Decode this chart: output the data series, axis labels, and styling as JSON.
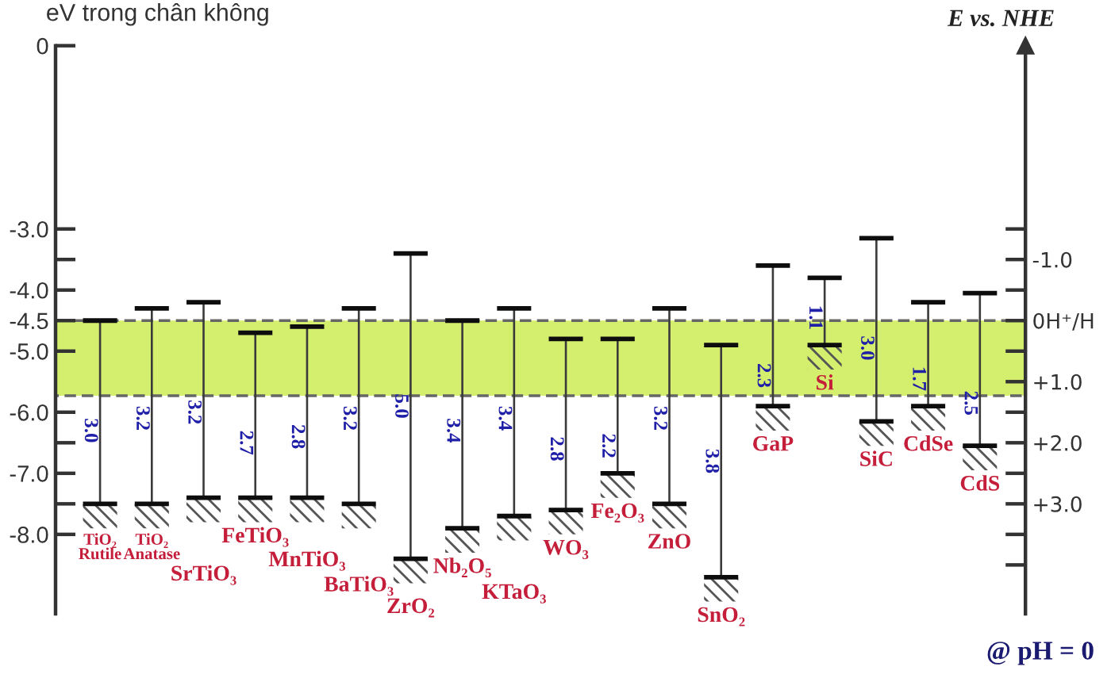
{
  "chart_data": {
    "type": "bar",
    "ylabel": "eV trong chân không",
    "y2label": "E vs. NHE",
    "categories": [
      "TiO₂\nRutile",
      "TiO₂\nAnatase",
      "SrTiO₃",
      "FeTiO₃",
      "MnTiO₃",
      "BaTiO₃",
      "ZrO₂",
      "Nb₂O₅",
      "KTaO₃",
      "WO₃",
      "Fe₂O₃",
      "ZnO",
      "SnO₂",
      "GaP",
      "Si",
      "SiC",
      "CdSe",
      "CdS"
    ],
    "values": [
      3.0,
      3.2,
      3.2,
      2.7,
      2.8,
      3.2,
      5.0,
      3.4,
      3.4,
      2.8,
      2.2,
      3.2,
      3.8,
      2.3,
      1.1,
      3.0,
      1.7,
      2.5
    ],
    "base": [
      -7.5,
      -7.5,
      -7.4,
      -7.4,
      -7.4,
      -7.5,
      -8.4,
      -7.9,
      -7.7,
      -7.6,
      -7.0,
      -7.5,
      -8.7,
      -5.9,
      -4.9,
      -6.15,
      -5.9,
      -6.55
    ],
    "value_labels": [
      "3.0",
      "3.2",
      "3.2",
      "2.7",
      "2.8",
      "3.2",
      "5.0",
      "3.4",
      "3.4",
      "2.8",
      "2.2",
      "3.2",
      "3.8",
      "2.3",
      "1.1",
      "3.0",
      "1.7",
      "2.5"
    ],
    "color": "#3a3a3a",
    "ylim": [
      -9.3,
      0
    ],
    "yticks": [
      0,
      {
        "value": -3,
        "label": "-3.0"
      },
      {
        "value": -3.5,
        "label": null
      },
      {
        "value": -4,
        "label": "-4.0"
      },
      -4.5,
      {
        "value": -5,
        "label": "-5.0"
      },
      {
        "value": -6,
        "label": "-6.0"
      },
      {
        "value": -6.5,
        "label": null
      },
      {
        "value": -7,
        "label": "-7.0"
      },
      {
        "value": -7.5,
        "label": null
      },
      {
        "value": -8,
        "label": "-8.0"
      }
    ],
    "y2lim": [
      4.8,
      -4.5
    ],
    "y2ticks": [
      {
        "value": -1.5,
        "label": null
      },
      {
        "value": -1,
        "label": "-1.0"
      },
      {
        "value": -0.5,
        "label": null
      },
      {
        "value": 0,
        "label": "0H⁺/H"
      },
      {
        "value": 0.5,
        "label": null
      },
      {
        "value": 1,
        "label": "+1.0"
      },
      {
        "value": 1.5,
        "label": null
      },
      {
        "value": 2,
        "label": "+2.0"
      },
      {
        "value": 2.5,
        "label": null
      },
      {
        "value": 3,
        "label": "+3.0"
      },
      {
        "value": 3.5,
        "label": null
      },
      {
        "value": 4,
        "label": null
      }
    ],
    "bands": [
      {
        "axis": "y2",
        "from": 0,
        "to": 1.23,
        "color": "#d4ee6e"
      }
    ],
    "annotations": [
      "@ pH = 0"
    ],
    "grid": false
  }
}
